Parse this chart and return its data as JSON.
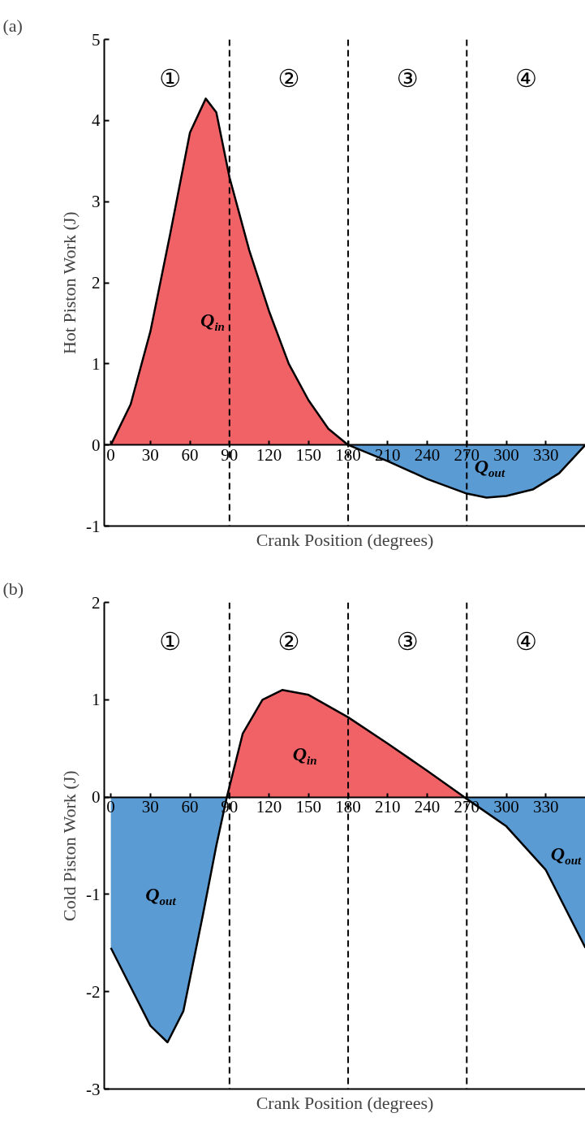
{
  "chart_data": [
    {
      "type": "area",
      "title": "(a)",
      "xlabel": "Crank Position (degrees)",
      "ylabel": "Hot Piston Work (J)",
      "x": [
        0,
        15,
        30,
        45,
        60,
        72,
        80,
        90,
        105,
        120,
        135,
        150,
        165,
        180,
        210,
        240,
        270,
        285,
        300,
        320,
        340,
        360
      ],
      "series": [
        {
          "color": "#f06266",
          "values": [
            0,
            0.5,
            1.4,
            2.6,
            3.85,
            4.27,
            4.1,
            3.3,
            2.4,
            1.65,
            1.0,
            0.55,
            0.2,
            0,
            null,
            null,
            null,
            null,
            null,
            null,
            null,
            null
          ]
        },
        {
          "color": "#5b9bd3",
          "values": [
            null,
            null,
            null,
            null,
            null,
            null,
            null,
            null,
            null,
            null,
            null,
            null,
            null,
            0,
            -0.2,
            -0.42,
            -0.6,
            -0.65,
            -0.63,
            -0.55,
            -0.35,
            0
          ]
        }
      ],
      "xlim": [
        -5,
        360
      ],
      "xticks": [
        0,
        30,
        60,
        90,
        120,
        150,
        180,
        210,
        240,
        270,
        300,
        330
      ],
      "ylim": [
        -1,
        5
      ],
      "yticks": [
        -1,
        0,
        1,
        2,
        3,
        4,
        5
      ],
      "grid": false,
      "ref_lines": [
        {
          "axis": "x",
          "value": 90,
          "line_style": "dashed"
        },
        {
          "axis": "x",
          "value": 180,
          "line_style": "dashed"
        },
        {
          "axis": "x",
          "value": 270,
          "line_style": "dashed"
        }
      ],
      "annotations": [
        "①",
        "②",
        "③",
        "④",
        "Q$_{in}$",
        "Q$_{out}$"
      ]
    },
    {
      "type": "area",
      "title": "(b)",
      "xlabel": "Crank Position (degrees)",
      "ylabel": "Cold Piston Work (J)",
      "x": [
        0,
        15,
        30,
        43,
        55,
        70,
        80,
        88,
        100,
        115,
        130,
        150,
        180,
        210,
        240,
        268,
        300,
        330,
        360
      ],
      "series": [
        {
          "color": "#5b9bd3",
          "values": [
            -1.55,
            -1.95,
            -2.35,
            -2.52,
            -2.2,
            -1.2,
            -0.5,
            0,
            null,
            null,
            null,
            null,
            null,
            null,
            null,
            0,
            -0.3,
            -0.75,
            -1.55
          ]
        },
        {
          "color": "#f06266",
          "values": [
            null,
            null,
            null,
            null,
            null,
            null,
            null,
            0,
            0.65,
            1.0,
            1.1,
            1.05,
            0.82,
            0.55,
            0.27,
            0,
            null,
            null,
            null
          ]
        }
      ],
      "xlim": [
        -5,
        360
      ],
      "xticks": [
        0,
        30,
        60,
        90,
        120,
        150,
        180,
        210,
        240,
        270,
        300,
        330
      ],
      "ylim": [
        -3,
        2
      ],
      "yticks": [
        -3,
        -2,
        -1,
        0,
        1,
        2
      ],
      "grid": false,
      "ref_lines": [
        {
          "axis": "x",
          "value": 90,
          "line_style": "dashed"
        },
        {
          "axis": "x",
          "value": 180,
          "line_style": "dashed"
        },
        {
          "axis": "x",
          "value": 270,
          "line_style": "dashed"
        }
      ],
      "annotations": [
        "①",
        "②",
        "③",
        "④",
        "Q$_{out}$",
        "Q$_{out}$",
        "Q$_{in}$"
      ]
    }
  ]
}
